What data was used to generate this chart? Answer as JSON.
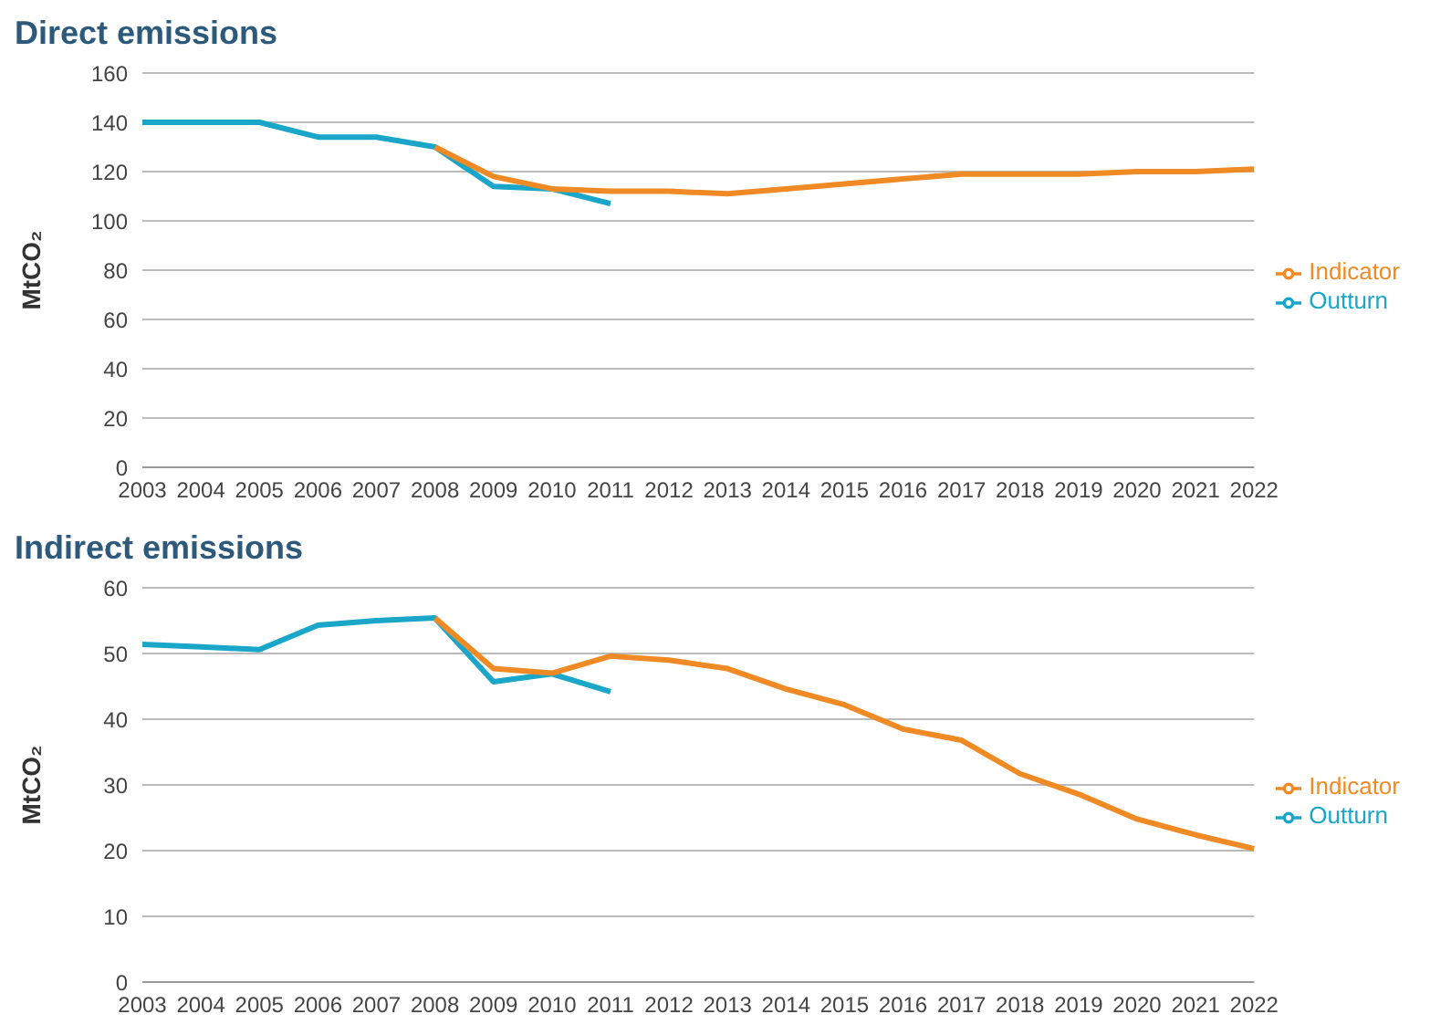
{
  "chart_data": [
    {
      "type": "line",
      "title": "Direct emissions",
      "ylabel": "MtCO₂",
      "categories": [
        "2003",
        "2004",
        "2005",
        "2006",
        "2007",
        "2008",
        "2009",
        "2010",
        "2011",
        "2012",
        "2013",
        "2014",
        "2015",
        "2016",
        "2017",
        "2018",
        "2019",
        "2020",
        "2021",
        "2022"
      ],
      "series": [
        {
          "name": "Outturn",
          "color": "#1aa6c8",
          "values": [
            140,
            140,
            140,
            134,
            134,
            130,
            114,
            113,
            107,
            null,
            null,
            null,
            null,
            null,
            null,
            null,
            null,
            null,
            null,
            null
          ]
        },
        {
          "name": "Indicator",
          "color": "#f08a24",
          "values": [
            null,
            null,
            null,
            null,
            null,
            130,
            118,
            113,
            112,
            112,
            111,
            113,
            115,
            117,
            119,
            119,
            119,
            120,
            120,
            121
          ]
        }
      ],
      "ylim": [
        0,
        160
      ],
      "yticks": [
        0,
        20,
        40,
        60,
        80,
        100,
        120,
        140,
        160
      ],
      "grid": "y",
      "legend": "right",
      "marker": "none",
      "line_style": "solid"
    },
    {
      "type": "line",
      "title": "Indirect emissions",
      "ylabel": "MtCO₂",
      "categories": [
        "2003",
        "2004",
        "2005",
        "2006",
        "2007",
        "2008",
        "2009",
        "2010",
        "2011",
        "2012",
        "2013",
        "2014",
        "2015",
        "2016",
        "2017",
        "2018",
        "2019",
        "2020",
        "2021",
        "2022"
      ],
      "series": [
        {
          "name": "Outturn",
          "color": "#1aa6c8",
          "values": [
            51.4,
            51,
            50.6,
            54.3,
            55,
            55.4,
            45.7,
            46.9,
            44.2,
            null,
            null,
            null,
            null,
            null,
            null,
            null,
            null,
            null,
            null,
            null
          ]
        },
        {
          "name": "Indicator",
          "color": "#f08a24",
          "values": [
            null,
            null,
            null,
            null,
            null,
            55.4,
            47.7,
            47,
            49.6,
            49,
            47.7,
            44.6,
            42.2,
            38.5,
            36.8,
            31.7,
            28.6,
            24.8,
            22.4,
            20.3
          ]
        }
      ],
      "ylim": [
        0,
        60
      ],
      "yticks": [
        0,
        10,
        20,
        30,
        40,
        50,
        60
      ],
      "grid": "y",
      "legend": "right",
      "marker": "none",
      "line_style": "solid"
    }
  ]
}
